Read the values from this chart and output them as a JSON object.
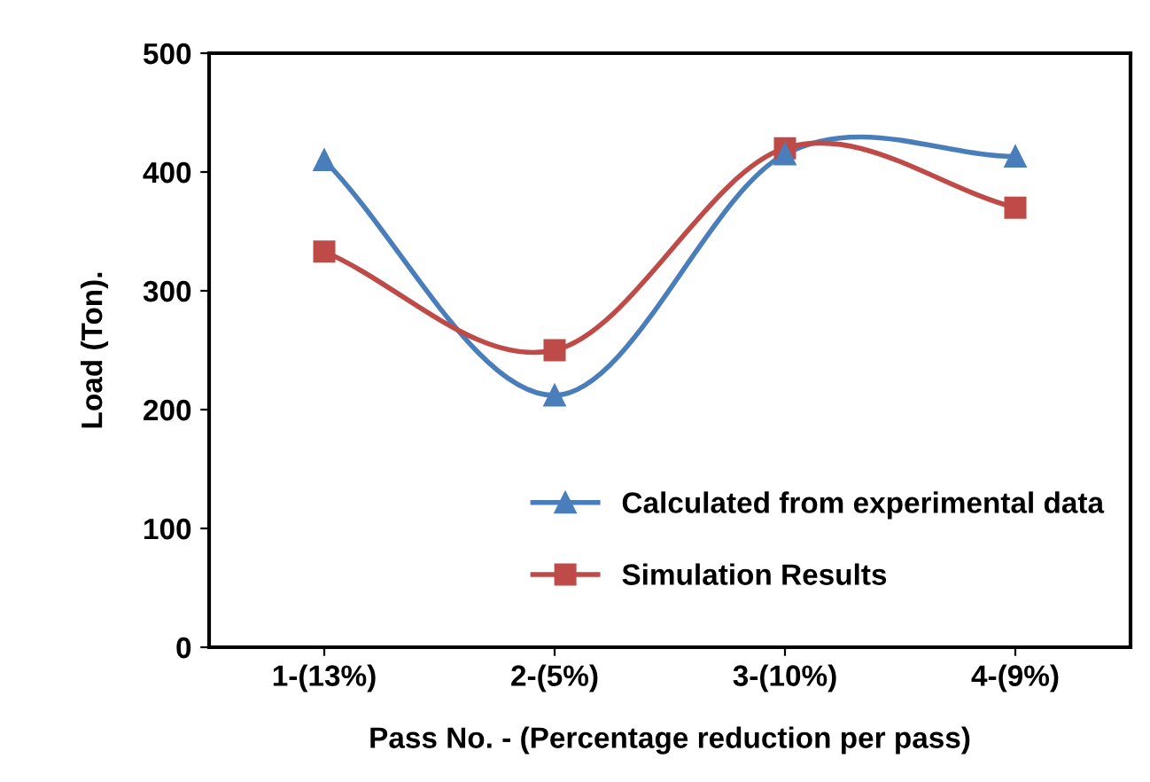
{
  "chart_data": {
    "type": "line",
    "xlabel": "Pass No. - (Percentage reduction per pass)",
    "ylabel": "Load (Ton).",
    "categories": [
      "1-(13%)",
      "2-(5%)",
      "3-(10%)",
      "4-(9%)"
    ],
    "series": [
      {
        "name": "Calculated from experimental data",
        "color": "#4a7ebb",
        "values": [
          410,
          212,
          415,
          413
        ],
        "marker": "triangle"
      },
      {
        "name": "Simulation Results",
        "color": "#be4b48",
        "values": [
          333,
          250,
          420,
          370
        ],
        "marker": "square"
      }
    ],
    "ylim": [
      0,
      500
    ],
    "yticks": [
      0,
      100,
      200,
      300,
      400,
      500
    ],
    "grid": false,
    "legend": "bottom right",
    "line_style": "solid"
  }
}
